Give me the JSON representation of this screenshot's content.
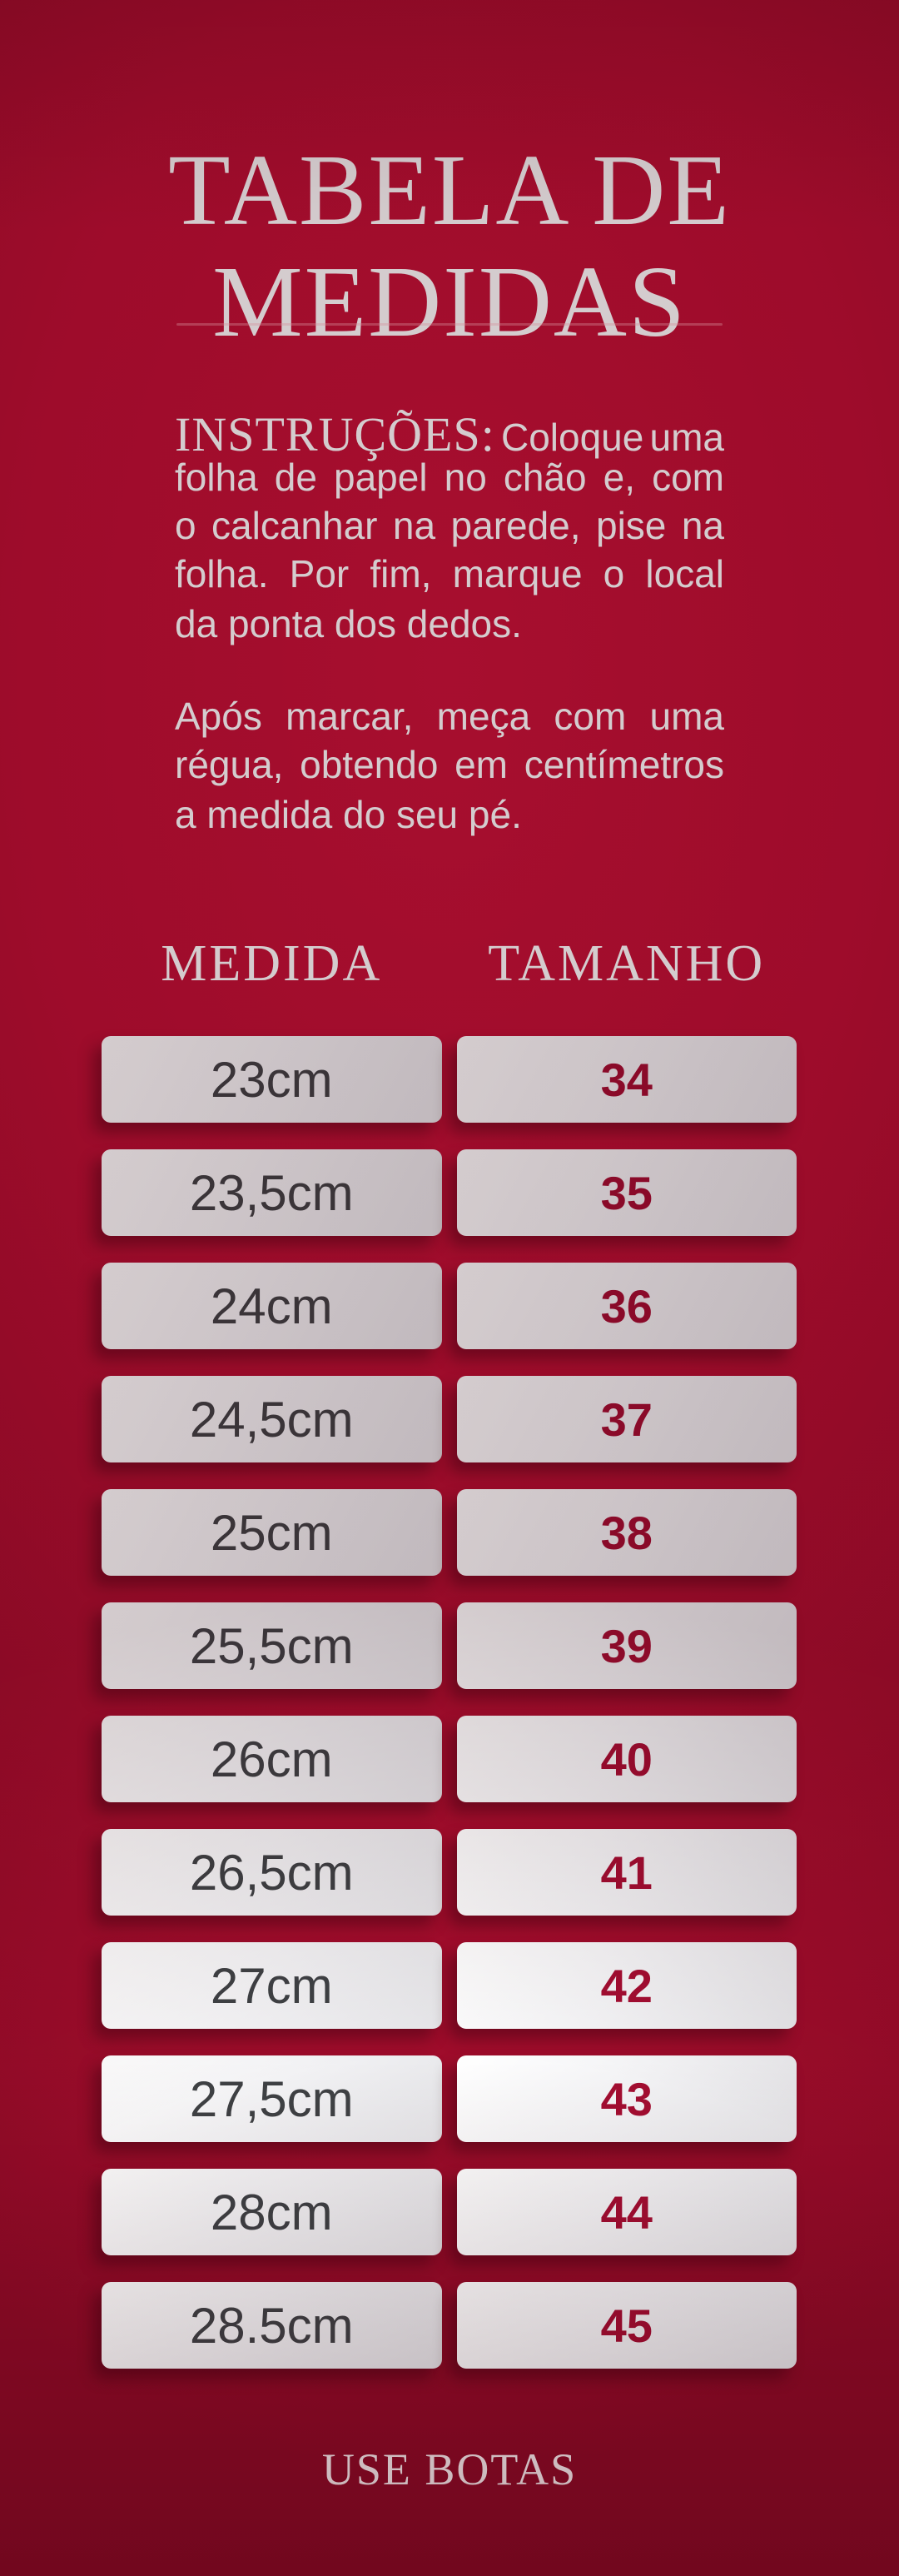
{
  "header": {
    "title_line1": "TABELA DE",
    "title_line2": "MEDIDAS"
  },
  "instructions": {
    "label": "INSTRUÇÕES:",
    "paragraphs": [
      {
        "lines": [
          {
            "text": "Coloque uma",
            "justify": true,
            "lead_label": true
          },
          {
            "text": "folha de papel no chão e, com",
            "justify": true
          },
          {
            "text": "o calcanhar na parede, pise na",
            "justify": true
          },
          {
            "text": "folha. Por fim, marque o local",
            "justify": true
          },
          {
            "text": "da ponta dos dedos.",
            "justify": false
          }
        ]
      },
      {
        "lines": [
          {
            "text": "Após marcar, meça com uma",
            "justify": true
          },
          {
            "text": "régua, obtendo em centímetros",
            "justify": true
          },
          {
            "text": "a medida do seu pé.",
            "justify": false
          }
        ]
      }
    ]
  },
  "table": {
    "header_left": "MEDIDA",
    "header_right": "TAMANHO",
    "rows": [
      {
        "medida": "23cm",
        "tamanho": "34"
      },
      {
        "medida": "23,5cm",
        "tamanho": "35"
      },
      {
        "medida": "24cm",
        "tamanho": "36"
      },
      {
        "medida": "24,5cm",
        "tamanho": "37"
      },
      {
        "medida": "25cm",
        "tamanho": "38"
      },
      {
        "medida": "25,5cm",
        "tamanho": "39"
      },
      {
        "medida": "26cm",
        "tamanho": "40"
      },
      {
        "medida": "26,5cm",
        "tamanho": "41"
      },
      {
        "medida": "27cm",
        "tamanho": "42"
      },
      {
        "medida": "27,5cm",
        "tamanho": "43"
      },
      {
        "medida": "28cm",
        "tamanho": "44"
      },
      {
        "medida": "28.5cm",
        "tamanho": "45"
      }
    ]
  },
  "footer": {
    "brand": "USE BOTAS"
  },
  "colors": {
    "background_center": "#c71138",
    "background_edge": "#8e0a26",
    "title_text": "#ffffff",
    "divider": "#d98a9a",
    "cell_background_top": "#ffffff",
    "cell_background_bottom": "#e7e7ea",
    "measure_text": "#3e4144",
    "size_text": "#a30d31",
    "footer_text": "#fcf0f2"
  }
}
